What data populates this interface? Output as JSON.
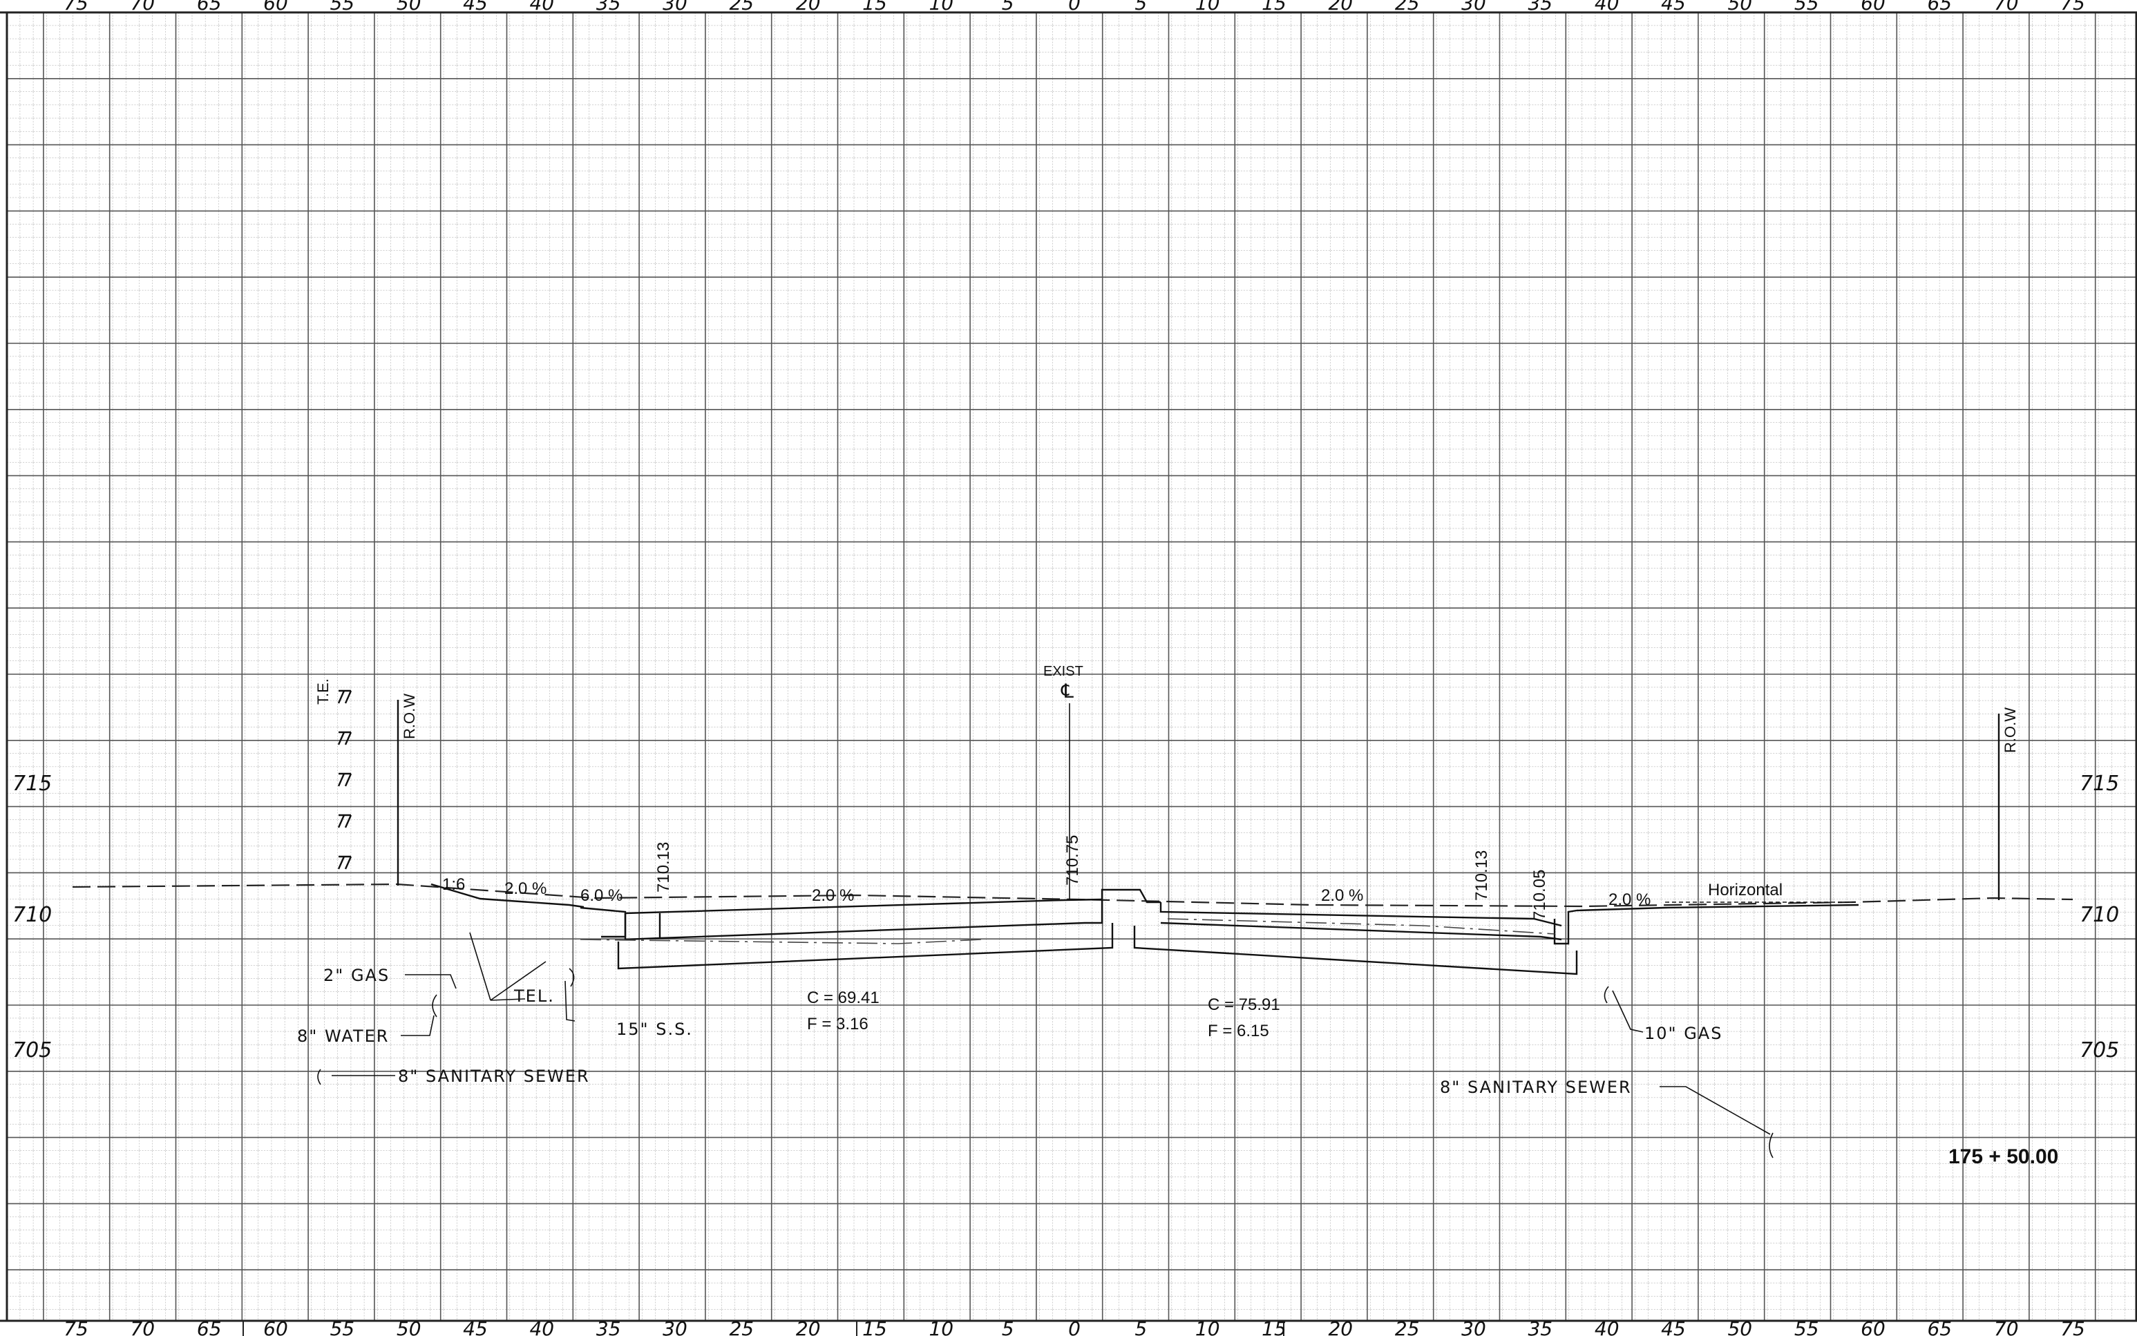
{
  "sheet": {
    "station_label": "175 + 50.00",
    "offset_ticks": [
      "75",
      "70",
      "65",
      "60",
      "55",
      "50",
      "45",
      "40",
      "35",
      "30",
      "25",
      "20",
      "15",
      "10",
      "5",
      "0",
      "5",
      "10",
      "15",
      "20",
      "25",
      "30",
      "35",
      "40",
      "45",
      "50",
      "55",
      "60",
      "65",
      "70",
      "75"
    ],
    "elevation_ticks": [
      "715",
      "710",
      "705"
    ],
    "labels": {
      "row_left": "R.O.W",
      "row_right": "R.O.W",
      "te": "T.E.",
      "exist_cl": "EXIST",
      "exist_cl_symbol": "℄",
      "slope_1_6": "1:6",
      "slope_l_2pct": "2.0 %",
      "slope_l_6pct": "6.0 %",
      "slope_l_2pct_b": "2.0 %",
      "slope_r_2pct": "2.0 %",
      "slope_r_2pct_b": "2.0 %",
      "horizontal": "Horizontal",
      "elev_l_edge": "710.13",
      "elev_cl": "710.75",
      "elev_r_edge": "710.13",
      "elev_r_curb": "710.05",
      "cut_left": "C  =  69.41",
      "fill_left": "F  =  3.16",
      "cut_right": "C  =  75.91",
      "fill_right": "F  =  6.15"
    },
    "utilities": {
      "gas_2": "2\" GAS",
      "tel": "TEL.",
      "water_8": "8\" WATER",
      "ss_15": "15\" S.S.",
      "san_8_left": "8\" SANITARY SEWER",
      "gas_10": "10\" GAS",
      "san_8_right": "8\" SANITARY SEWER"
    }
  }
}
